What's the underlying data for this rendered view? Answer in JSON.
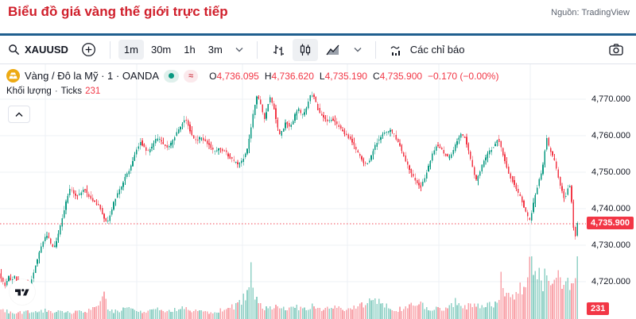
{
  "page": {
    "title": "Biểu đồ giá vàng thế giới trực tiếp",
    "source_label": "Nguồn: TradingView"
  },
  "toolbar": {
    "symbol": "XAUUSD",
    "intervals": [
      {
        "label": "1m",
        "active": true
      },
      {
        "label": "30m",
        "active": false
      },
      {
        "label": "1h",
        "active": false
      },
      {
        "label": "3m",
        "active": false
      }
    ],
    "chart_styles": [
      "bars",
      "candles",
      "area"
    ],
    "active_chart_style": "candles",
    "indicators_label": "Các chỉ báo"
  },
  "legend": {
    "title": "Vàng / Đô la Mỹ · 1 · OANDA",
    "ohlc": {
      "o_label": "O",
      "o": "4,736.095",
      "h_label": "H",
      "h": "4,736.620",
      "l_label": "L",
      "l": "4,735.190",
      "c_label": "C",
      "c": "4,735.900",
      "change": "−0.170 (−0.00%)"
    },
    "volume_row": {
      "label": "Khối lượng",
      "sep": "·",
      "type": "Ticks",
      "value": "231"
    }
  },
  "axis": {
    "ticks": [
      {
        "label": "4,770.000",
        "price": 4770
      },
      {
        "label": "4,760.000",
        "price": 4760
      },
      {
        "label": "4,750.000",
        "price": 4750
      },
      {
        "label": "4,740.000",
        "price": 4740
      },
      {
        "label": "4,730.000",
        "price": 4730
      },
      {
        "label": "4,720.000",
        "price": 4720
      }
    ],
    "last_price_label": "4,735.900",
    "last_volume_label": "231"
  },
  "chart_data": {
    "type": "candlestick",
    "title": "Vàng / Đô la Mỹ (XAUUSD) · 1 · OANDA",
    "interval": "1",
    "exchange": "OANDA",
    "open": 4736.095,
    "high": 4736.62,
    "low": 4735.19,
    "close": 4735.9,
    "change": -0.17,
    "change_pct": "-0.00%",
    "last_price": 4735.9,
    "tick_volume": 231,
    "ylim": [
      4710,
      4779
    ],
    "y_ticks": [
      4720,
      4730,
      4740,
      4750,
      4760,
      4770
    ],
    "grid": true,
    "price_path": [
      [
        0,
        4723
      ],
      [
        4,
        4720.5
      ],
      [
        8,
        4719
      ],
      [
        12,
        4721.5
      ],
      [
        16,
        4720
      ],
      [
        20,
        4721.5
      ],
      [
        25,
        4719
      ],
      [
        30,
        4717.5
      ],
      [
        34,
        4719.5
      ],
      [
        38,
        4718.5
      ],
      [
        42,
        4721
      ],
      [
        46,
        4724.5
      ],
      [
        50,
        4727
      ],
      [
        54,
        4730
      ],
      [
        58,
        4732
      ],
      [
        62,
        4732.5
      ],
      [
        66,
        4730
      ],
      [
        70,
        4729.5
      ],
      [
        74,
        4732
      ],
      [
        78,
        4736
      ],
      [
        82,
        4739.5
      ],
      [
        86,
        4743
      ],
      [
        90,
        4745.5
      ],
      [
        95,
        4744
      ],
      [
        100,
        4743.5
      ],
      [
        104,
        4744.5
      ],
      [
        108,
        4745.5
      ],
      [
        113,
        4743.5
      ],
      [
        118,
        4742
      ],
      [
        123,
        4741.5
      ],
      [
        128,
        4740
      ],
      [
        132,
        4737.5
      ],
      [
        136,
        4736
      ],
      [
        140,
        4738.5
      ],
      [
        145,
        4742
      ],
      [
        150,
        4744.5
      ],
      [
        155,
        4746.5
      ],
      [
        160,
        4749
      ],
      [
        165,
        4751
      ],
      [
        170,
        4754
      ],
      [
        175,
        4757
      ],
      [
        178,
        4758.5
      ],
      [
        182,
        4757
      ],
      [
        187,
        4755.5
      ],
      [
        193,
        4757
      ],
      [
        199,
        4759.5
      ],
      [
        205,
        4758.5
      ],
      [
        211,
        4756.5
      ],
      [
        217,
        4758
      ],
      [
        223,
        4760.5
      ],
      [
        229,
        4763
      ],
      [
        235,
        4764.5
      ],
      [
        239,
        4762.5
      ],
      [
        244,
        4759.5
      ],
      [
        249,
        4758.5
      ],
      [
        254,
        4759.5
      ],
      [
        259,
        4758.5
      ],
      [
        265,
        4757.5
      ],
      [
        271,
        4755.5
      ],
      [
        277,
        4756.5
      ],
      [
        283,
        4756
      ],
      [
        289,
        4754.5
      ],
      [
        295,
        4753
      ],
      [
        301,
        4752.2
      ],
      [
        307,
        4753.5
      ],
      [
        312,
        4756
      ],
      [
        316,
        4760
      ],
      [
        320,
        4766
      ],
      [
        324,
        4771
      ],
      [
        328,
        4769.5
      ],
      [
        332,
        4766
      ],
      [
        335,
        4764.5
      ],
      [
        338,
        4768
      ],
      [
        341,
        4770.5
      ],
      [
        345,
        4768.5
      ],
      [
        349,
        4764
      ],
      [
        353,
        4760
      ],
      [
        357,
        4761.5
      ],
      [
        361,
        4764
      ],
      [
        365,
        4762.5
      ],
      [
        369,
        4763
      ],
      [
        373,
        4766
      ],
      [
        377,
        4767.5
      ],
      [
        381,
        4765.5
      ],
      [
        385,
        4766.5
      ],
      [
        389,
        4769
      ],
      [
        393,
        4771.5
      ],
      [
        397,
        4770.5
      ],
      [
        401,
        4767.5
      ],
      [
        405,
        4765.5
      ],
      [
        410,
        4764.5
      ],
      [
        415,
        4764
      ],
      [
        420,
        4764.5
      ],
      [
        426,
        4763
      ],
      [
        432,
        4761.5
      ],
      [
        438,
        4760
      ],
      [
        444,
        4758.5
      ],
      [
        450,
        4756
      ],
      [
        456,
        4753.5
      ],
      [
        461,
        4752
      ],
      [
        466,
        4753
      ],
      [
        471,
        4756
      ],
      [
        476,
        4758.5
      ],
      [
        481,
        4760
      ],
      [
        487,
        4761
      ],
      [
        493,
        4761.5
      ],
      [
        498,
        4760
      ],
      [
        504,
        4757.5
      ],
      [
        510,
        4754
      ],
      [
        516,
        4751
      ],
      [
        522,
        4748.5
      ],
      [
        527,
        4746.5
      ],
      [
        531,
        4746
      ],
      [
        536,
        4748.5
      ],
      [
        541,
        4752
      ],
      [
        546,
        4755.5
      ],
      [
        551,
        4757.5
      ],
      [
        556,
        4756.5
      ],
      [
        561,
        4755
      ],
      [
        566,
        4753.8
      ],
      [
        571,
        4755.5
      ],
      [
        576,
        4758.5
      ],
      [
        581,
        4760.5
      ],
      [
        586,
        4759.5
      ],
      [
        590,
        4757
      ],
      [
        594,
        4753
      ],
      [
        598,
        4749.5
      ],
      [
        601,
        4747.5
      ],
      [
        605,
        4750
      ],
      [
        610,
        4753
      ],
      [
        615,
        4755
      ],
      [
        620,
        4756.5
      ],
      [
        624,
        4757.5
      ],
      [
        628,
        4759.5
      ],
      [
        632,
        4756.5
      ],
      [
        636,
        4753.5
      ],
      [
        640,
        4750.5
      ],
      [
        645,
        4748
      ],
      [
        650,
        4746
      ],
      [
        655,
        4743.5
      ],
      [
        660,
        4741
      ],
      [
        664,
        4738.5
      ],
      [
        668,
        4736.6
      ],
      [
        672,
        4741
      ],
      [
        676,
        4745
      ],
      [
        680,
        4748
      ],
      [
        684,
        4751
      ],
      [
        687,
        4756
      ],
      [
        689,
        4760
      ],
      [
        691,
        4757.5
      ],
      [
        694,
        4755.5
      ],
      [
        697,
        4754
      ],
      [
        700,
        4752.5
      ],
      [
        703,
        4749
      ],
      [
        706,
        4746.5
      ],
      [
        709,
        4744.5
      ],
      [
        712,
        4742.5
      ],
      [
        715,
        4745
      ],
      [
        717,
        4746.5
      ],
      [
        719,
        4745.5
      ],
      [
        721,
        4741
      ],
      [
        723,
        4735
      ],
      [
        725,
        4731.5
      ],
      [
        727,
        4735.9
      ]
    ],
    "volume_path": [
      [
        0,
        12
      ],
      [
        15,
        7
      ],
      [
        30,
        9
      ],
      [
        45,
        8
      ],
      [
        60,
        11
      ],
      [
        75,
        9
      ],
      [
        90,
        8
      ],
      [
        105,
        9
      ],
      [
        118,
        13
      ],
      [
        126,
        20
      ],
      [
        130,
        40
      ],
      [
        134,
        14
      ],
      [
        142,
        9
      ],
      [
        152,
        12
      ],
      [
        162,
        14
      ],
      [
        172,
        11
      ],
      [
        182,
        9
      ],
      [
        192,
        11
      ],
      [
        202,
        13
      ],
      [
        212,
        10
      ],
      [
        222,
        12
      ],
      [
        232,
        14
      ],
      [
        242,
        11
      ],
      [
        252,
        9
      ],
      [
        262,
        8
      ],
      [
        272,
        10
      ],
      [
        282,
        12
      ],
      [
        292,
        15
      ],
      [
        300,
        20
      ],
      [
        306,
        26
      ],
      [
        311,
        38
      ],
      [
        315,
        74
      ],
      [
        319,
        34
      ],
      [
        325,
        18
      ],
      [
        333,
        13
      ],
      [
        341,
        15
      ],
      [
        349,
        17
      ],
      [
        357,
        13
      ],
      [
        365,
        12
      ],
      [
        373,
        15
      ],
      [
        381,
        13
      ],
      [
        389,
        16
      ],
      [
        397,
        14
      ],
      [
        405,
        12
      ],
      [
        413,
        13
      ],
      [
        421,
        15
      ],
      [
        429,
        13
      ],
      [
        437,
        12
      ],
      [
        445,
        15
      ],
      [
        453,
        17
      ],
      [
        461,
        22
      ],
      [
        468,
        24
      ],
      [
        475,
        21
      ],
      [
        482,
        17
      ],
      [
        490,
        13
      ],
      [
        498,
        12
      ],
      [
        506,
        14
      ],
      [
        514,
        17
      ],
      [
        521,
        20
      ],
      [
        528,
        18
      ],
      [
        535,
        14
      ],
      [
        542,
        12
      ],
      [
        550,
        13
      ],
      [
        558,
        12
      ],
      [
        566,
        16
      ],
      [
        572,
        24
      ],
      [
        578,
        16
      ],
      [
        584,
        14
      ],
      [
        590,
        17
      ],
      [
        596,
        20
      ],
      [
        602,
        15
      ],
      [
        608,
        14
      ],
      [
        614,
        17
      ],
      [
        620,
        18
      ],
      [
        626,
        22
      ],
      [
        630,
        58
      ],
      [
        634,
        32
      ],
      [
        638,
        28
      ],
      [
        642,
        26
      ],
      [
        646,
        30
      ],
      [
        650,
        34
      ],
      [
        654,
        46
      ],
      [
        658,
        40
      ],
      [
        662,
        55
      ],
      [
        666,
        78
      ],
      [
        670,
        48
      ],
      [
        674,
        62
      ],
      [
        678,
        55
      ],
      [
        682,
        48
      ],
      [
        686,
        66
      ],
      [
        690,
        58
      ],
      [
        694,
        42
      ],
      [
        698,
        48
      ],
      [
        702,
        60
      ],
      [
        706,
        42
      ],
      [
        710,
        38
      ],
      [
        714,
        46
      ],
      [
        718,
        50
      ],
      [
        722,
        58
      ],
      [
        726,
        64
      ],
      [
        730,
        30
      ]
    ],
    "colors": {
      "up": "#089981",
      "down": "#f23645",
      "vol_up": "rgba(8,153,129,0.45)",
      "vol_down": "rgba(242,54,69,0.45)",
      "last_price_line": "#f23645",
      "grid": "#eef1f6",
      "badge": "#f23645"
    }
  },
  "ui_colors": {
    "title_red": "#d01f2b",
    "navy_border": "#1f5f8f",
    "text": "#131722",
    "muted": "#787b86",
    "border": "#e0e3eb",
    "active_pill": "#eef0f3",
    "coin_gold": "#edaa13"
  },
  "watermark": "tradingview-logo"
}
